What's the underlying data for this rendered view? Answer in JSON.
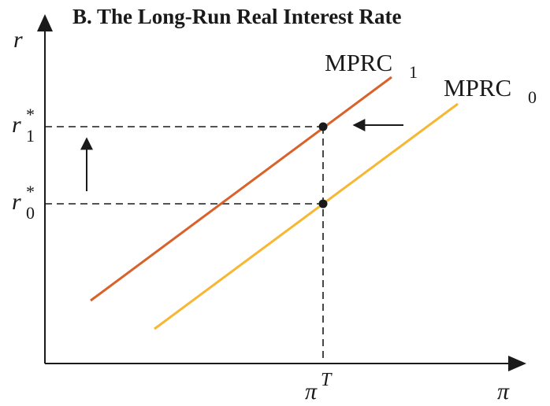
{
  "title": "B. The Long-Run Real Interest Rate",
  "axes": {
    "y_label": "r",
    "x_label": "π",
    "x_marker": {
      "base": "π",
      "sup": "T"
    },
    "y_markers": [
      {
        "base": "r",
        "sup": "*",
        "sub": "1"
      },
      {
        "base": "r",
        "sup": "*",
        "sub": "0"
      }
    ]
  },
  "curves": [
    {
      "base": "MPRC",
      "sub": "1",
      "color": "#d9622b"
    },
    {
      "base": "MPRC",
      "sub": "0",
      "color": "#f7b733"
    }
  ],
  "arrows": [
    {
      "direction": "up"
    },
    {
      "direction": "left"
    }
  ],
  "colors": {
    "axis": "#1a1a1a",
    "dashed": "#1a1a1a"
  }
}
